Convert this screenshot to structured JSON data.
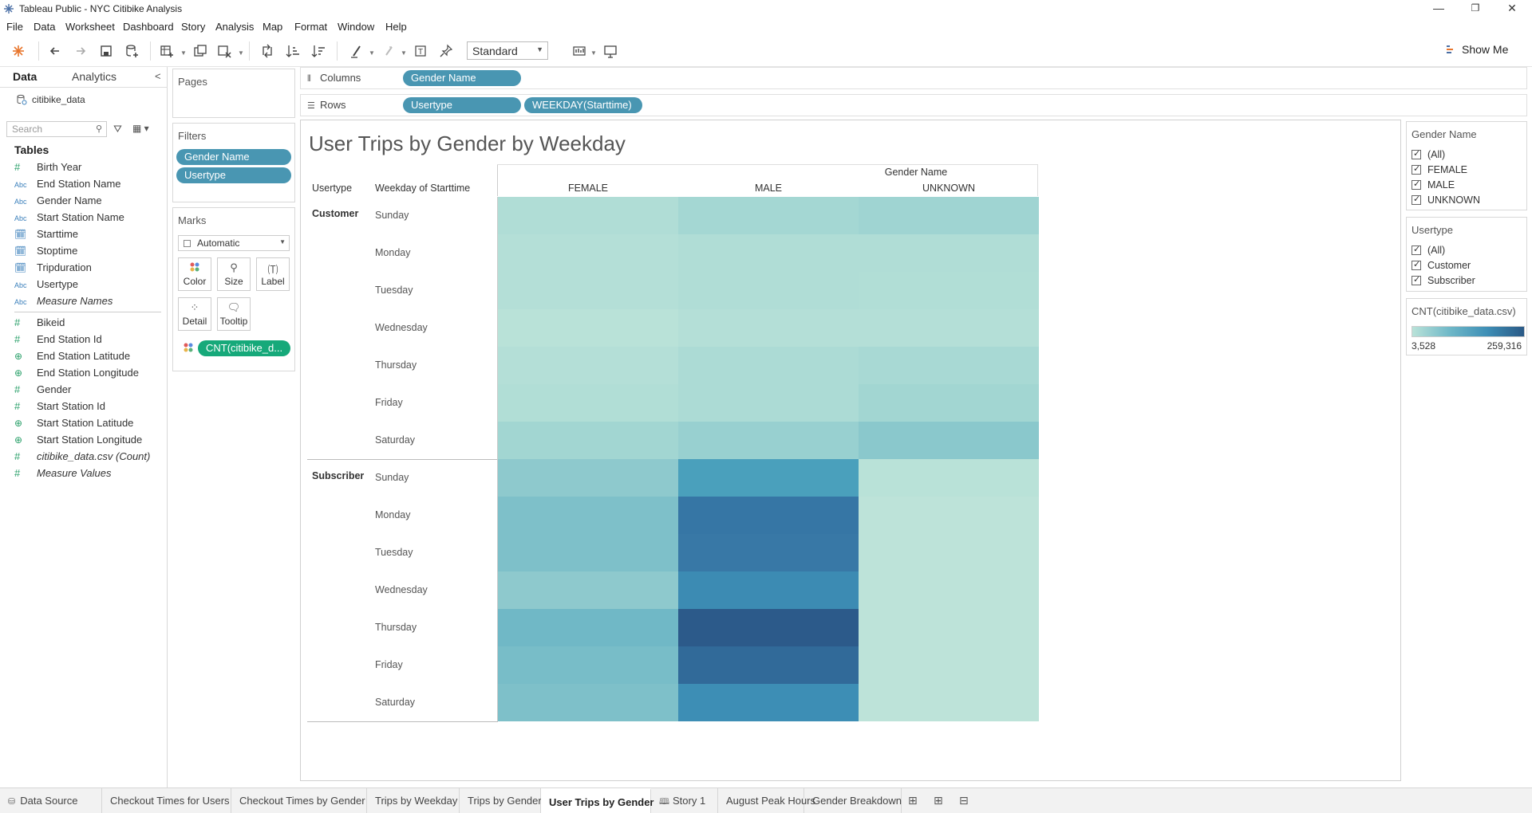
{
  "window": {
    "title": "Tableau Public - NYC Citibike Analysis",
    "minimize": "—",
    "restore": "❐",
    "close": "✕"
  },
  "menu": [
    "File",
    "Data",
    "Worksheet",
    "Dashboard",
    "Story",
    "Analysis",
    "Map",
    "Format",
    "Window",
    "Help"
  ],
  "toolbar": {
    "fit_select": "Standard",
    "show_me": "Show Me"
  },
  "datapane": {
    "tab_data": "Data",
    "tab_analytics": "Analytics",
    "datasource": "citibike_data",
    "search_placeholder": "Search",
    "tables_heading": "Tables",
    "fields": [
      {
        "type": "#",
        "name": "Birth Year"
      },
      {
        "type": "Abc",
        "name": "End Station Name"
      },
      {
        "type": "Abc",
        "name": "Gender Name"
      },
      {
        "type": "Abc",
        "name": "Start Station Name"
      },
      {
        "type": "date",
        "name": "Starttime"
      },
      {
        "type": "date",
        "name": "Stoptime"
      },
      {
        "type": "date",
        "name": "Tripduration"
      },
      {
        "type": "Abc",
        "name": "Usertype"
      },
      {
        "type": "Abc",
        "name": "Measure Names"
      },
      {
        "type": "#",
        "name": "Bikeid"
      },
      {
        "type": "#",
        "name": "End Station Id"
      },
      {
        "type": "geo",
        "name": "End Station Latitude"
      },
      {
        "type": "geo",
        "name": "End Station Longitude"
      },
      {
        "type": "#",
        "name": "Gender"
      },
      {
        "type": "#",
        "name": "Start Station Id"
      },
      {
        "type": "geo",
        "name": "Start Station Latitude"
      },
      {
        "type": "geo",
        "name": "Start Station Longitude"
      },
      {
        "type": "#",
        "name": "citibike_data.csv (Count)"
      },
      {
        "type": "#",
        "name": "Measure Values"
      }
    ]
  },
  "shelves": {
    "pages_title": "Pages",
    "filters_title": "Filters",
    "filters": [
      "Gender Name",
      "Usertype"
    ],
    "marks_title": "Marks",
    "mark_type": "Automatic",
    "mark_buttons": [
      "Color",
      "Size",
      "Label",
      "Detail",
      "Tooltip"
    ],
    "mark_pill": "CNT(citibike_d...",
    "columns_label": "Columns",
    "columns": [
      "Gender Name"
    ],
    "rows_label": "Rows",
    "rows": [
      "Usertype",
      "WEEKDAY(Starttime)"
    ]
  },
  "sheet": {
    "title": "User Trips by Gender by Weekday",
    "col_group_header": "Gender Name",
    "row_header_1": "Usertype",
    "row_header_2": "Weekday of Starttime",
    "columns": [
      "FEMALE",
      "MALE",
      "UNKNOWN"
    ],
    "groups": [
      {
        "name": "Customer",
        "days": [
          "Sunday",
          "Monday",
          "Tuesday",
          "Wednesday",
          "Thursday",
          "Friday",
          "Saturday"
        ]
      },
      {
        "name": "Subscriber",
        "days": [
          "Sunday",
          "Monday",
          "Tuesday",
          "Wednesday",
          "Thursday",
          "Friday",
          "Saturday"
        ]
      }
    ]
  },
  "chart_data": {
    "type": "heatmap",
    "title": "User Trips by Gender by Weekday",
    "columns": [
      "FEMALE",
      "MALE",
      "UNKNOWN"
    ],
    "rows": [
      "Customer|Sunday",
      "Customer|Monday",
      "Customer|Tuesday",
      "Customer|Wednesday",
      "Customer|Thursday",
      "Customer|Friday",
      "Customer|Saturday",
      "Subscriber|Sunday",
      "Subscriber|Monday",
      "Subscriber|Tuesday",
      "Subscriber|Wednesday",
      "Subscriber|Thursday",
      "Subscriber|Friday",
      "Subscriber|Saturday"
    ],
    "colors": [
      [
        "#b0ddd6",
        "#a4d7d3",
        "#9fd4d2"
      ],
      [
        "#b4dfd7",
        "#b0ddd6",
        "#b0ddd6"
      ],
      [
        "#b4dfd7",
        "#b0ddd6",
        "#b1ded6"
      ],
      [
        "#b9e2d8",
        "#b4dfd7",
        "#b4dfd7"
      ],
      [
        "#b4dfd7",
        "#acdbd5",
        "#a8d9d4"
      ],
      [
        "#b1ded6",
        "#acdbd5",
        "#a2d6d2"
      ],
      [
        "#a2d6d2",
        "#98d0d0",
        "#8ac8cc"
      ],
      [
        "#8ec9cd",
        "#4aa0bc",
        "#b9e2d8"
      ],
      [
        "#7ec0c9",
        "#3676a5",
        "#bde3d9"
      ],
      [
        "#7ec0c9",
        "#3878a6",
        "#bde3d9"
      ],
      [
        "#8ec9cd",
        "#3c8bb3",
        "#bde3d9"
      ],
      [
        "#70b8c6",
        "#2c5a8a",
        "#bde3d9"
      ],
      [
        "#78bdc8",
        "#316a99",
        "#bde3d9"
      ],
      [
        "#7ec0c9",
        "#3d8eb5",
        "#bde3d9"
      ]
    ],
    "color_legend": {
      "field": "CNT(citibike_data.csv)",
      "min": "3,528",
      "max": "259,316"
    }
  },
  "legends": {
    "gender": {
      "title": "Gender Name",
      "items": [
        "(All)",
        "FEMALE",
        "MALE",
        "UNKNOWN"
      ]
    },
    "usertype": {
      "title": "Usertype",
      "items": [
        "(All)",
        "Customer",
        "Subscriber"
      ]
    },
    "color": {
      "title": "CNT(citibike_data.csv)",
      "min": "3,528",
      "max": "259,316"
    }
  },
  "tabs": [
    "Data Source",
    "Checkout Times for Users",
    "Checkout Times by Gender",
    "Trips by Weekday",
    "Trips by Gender",
    "User Trips by Gender",
    "Story 1",
    "August Peak Hours",
    "Gender Breakdown"
  ],
  "active_tab": "User Trips by Gender"
}
